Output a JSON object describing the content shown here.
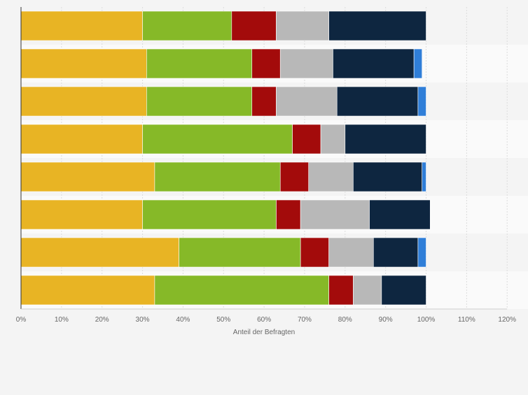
{
  "chart_data": {
    "type": "bar",
    "orientation": "horizontal",
    "stacked": true,
    "xlabel": "Anteil der Befragten",
    "xlim": [
      0,
      120
    ],
    "x_ticks": [
      "0%",
      "10%",
      "20%",
      "30%",
      "40%",
      "50%",
      "60%",
      "70%",
      "80%",
      "90%",
      "100%",
      "110%",
      "120%"
    ],
    "grid": true,
    "legend": "none",
    "categories": [
      "",
      "",
      "",
      "",
      "",
      "",
      "",
      ""
    ],
    "series": [
      {
        "color": "#e8b424",
        "values": [
          30,
          31,
          31,
          30,
          33,
          30,
          39,
          33
        ]
      },
      {
        "color": "#86b928",
        "values": [
          22,
          26,
          26,
          37,
          31,
          33,
          30,
          43
        ]
      },
      {
        "color": "#a30b0b",
        "values": [
          11,
          7,
          6,
          7,
          7,
          6,
          7,
          6
        ]
      },
      {
        "color": "#b8b8b8",
        "values": [
          13,
          13,
          15,
          6,
          11,
          17,
          11,
          7
        ]
      },
      {
        "color": "#0e2640",
        "values": [
          24,
          20,
          20,
          20,
          17,
          15,
          11,
          11
        ]
      },
      {
        "color": "#2f7ed8",
        "values": [
          0,
          2,
          2,
          0,
          1,
          0,
          2,
          0
        ]
      }
    ]
  }
}
